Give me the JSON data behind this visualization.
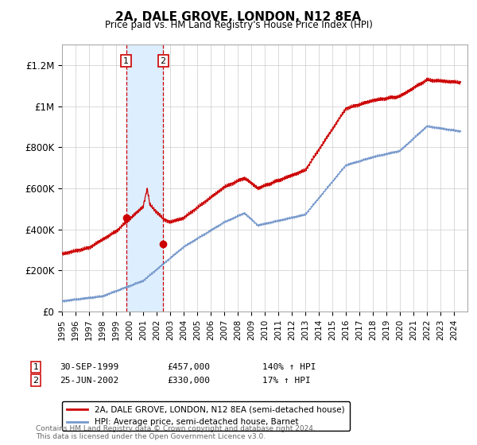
{
  "title": "2A, DALE GROVE, LONDON, N12 8EA",
  "subtitle": "Price paid vs. HM Land Registry's House Price Index (HPI)",
  "red_line_color": "#cc0000",
  "blue_line_color": "#7799cc",
  "marker_color": "#cc0000",
  "shading_color": "#ddeeff",
  "annotation1_date": "30-SEP-1999",
  "annotation1_price": "£457,000",
  "annotation1_hpi": "140% ↑ HPI",
  "annotation2_date": "25-JUN-2002",
  "annotation2_price": "£330,000",
  "annotation2_hpi": "17% ↑ HPI",
  "legend_label_red": "2A, DALE GROVE, LONDON, N12 8EA (semi-detached house)",
  "legend_label_blue": "HPI: Average price, semi-detached house, Barnet",
  "footnote": "Contains HM Land Registry data © Crown copyright and database right 2024.\nThis data is licensed under the Open Government Licence v3.0.",
  "transaction1_x": 1999.75,
  "transaction1_y": 457000,
  "transaction2_x": 2002.48,
  "transaction2_y": 330000,
  "vline1_x": 1999.75,
  "vline2_x": 2002.48,
  "xlim_start": 1995.0,
  "xlim_end": 2025.0,
  "ylim": [
    0,
    1300000
  ],
  "yticks": [
    0,
    200000,
    400000,
    600000,
    800000,
    1000000,
    1200000
  ],
  "ytick_labels": [
    "£0",
    "£200K",
    "£400K",
    "£600K",
    "£800K",
    "£1M",
    "£1.2M"
  ]
}
